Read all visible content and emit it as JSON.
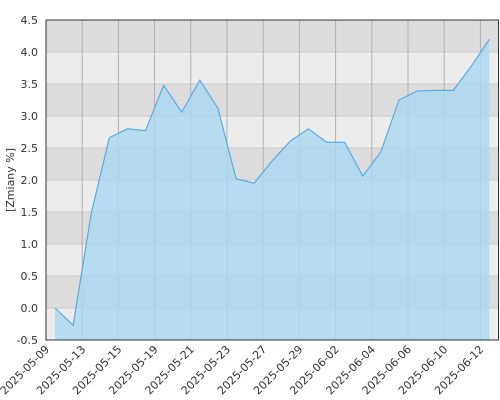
{
  "chart_data": {
    "type": "area",
    "y_label": "[Zmiany %]",
    "values": [
      0.0,
      -0.27,
      1.48,
      2.66,
      2.8,
      2.77,
      3.48,
      3.06,
      3.56,
      3.12,
      2.02,
      1.95,
      2.3,
      2.61,
      2.8,
      2.59,
      2.59,
      2.06,
      2.44,
      3.25,
      3.39,
      3.4,
      3.4,
      3.78,
      4.2
    ],
    "xtick_labels": [
      "2025-05-09",
      "2025-05-13",
      "2025-05-15",
      "2025-05-19",
      "2025-05-21",
      "2025-05-23",
      "2025-05-27",
      "2025-05-29",
      "2025-06-02",
      "2025-06-04",
      "2025-06-06",
      "2025-06-10",
      "2025-06-12"
    ],
    "ylim": [
      -0.5,
      4.5
    ],
    "yticks": [
      {
        "value": -0.5,
        "label": "-0.5"
      },
      {
        "value": 0,
        "label": "0.0"
      },
      {
        "value": 0.5,
        "label": "0.5"
      },
      {
        "value": 1,
        "label": "1.0"
      },
      {
        "value": 1.5,
        "label": "1.5"
      },
      {
        "value": 2,
        "label": "2.0"
      },
      {
        "value": 2.5,
        "label": "2.5"
      },
      {
        "value": 3,
        "label": "3.0"
      },
      {
        "value": 3.5,
        "label": "3.5"
      },
      {
        "value": 4,
        "label": "4.0"
      },
      {
        "value": 4.5,
        "label": "4.5"
      }
    ],
    "color": "#5aa9e6",
    "fill": "#a9d9f0",
    "grid": true
  }
}
